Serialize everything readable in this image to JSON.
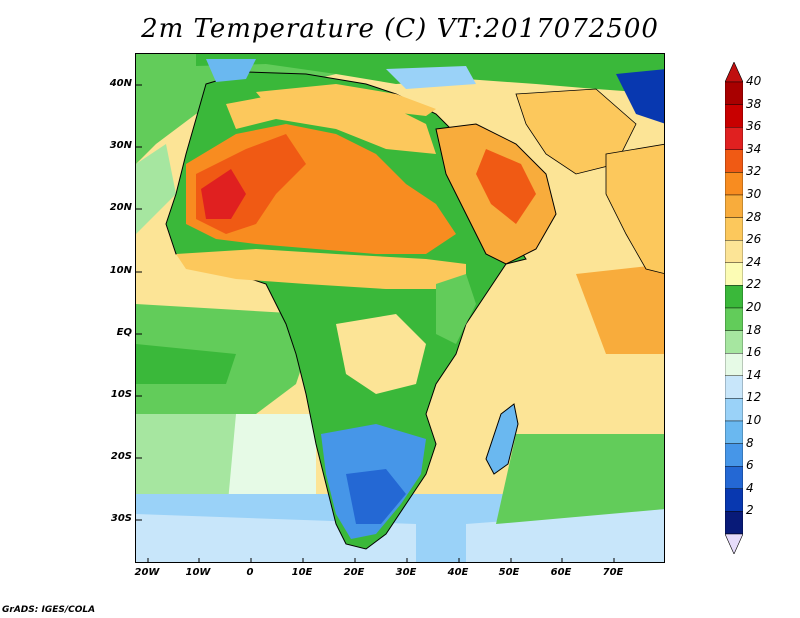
{
  "title": "2m Temperature (C) VT:2017072500",
  "credit": "GrADS: IGES/COLA",
  "lat_labels": [
    "40N",
    "30N",
    "20N",
    "10N",
    "EQ",
    "10S",
    "20S",
    "30S"
  ],
  "lon_labels": [
    "20W",
    "10W",
    "0",
    "10E",
    "20E",
    "30E",
    "40E",
    "50E",
    "60E",
    "70E"
  ],
  "colorbar": {
    "labels": [
      "40",
      "38",
      "36",
      "34",
      "32",
      "30",
      "28",
      "26",
      "24",
      "22",
      "20",
      "18",
      "16",
      "14",
      "12",
      "10",
      "8",
      "6",
      "4",
      "2"
    ],
    "colors": [
      "#a80000",
      "#c80000",
      "#e02020",
      "#f05a14",
      "#f88c20",
      "#f8ac3c",
      "#fcc85c",
      "#fce496",
      "#fcfcb4",
      "#3ab83a",
      "#62cc5a",
      "#a6e6a0",
      "#e6fae6",
      "#c8e6fa",
      "#9ad2f8",
      "#6ab8f0",
      "#4696e8",
      "#2468d4",
      "#0838b0",
      "#081a78"
    ],
    "top_arrow_color": "#c01010",
    "bottom_arrow_color": "#e6dcfa"
  },
  "map": {
    "lon_range": [
      -22,
      80
    ],
    "lat_range": [
      -37,
      45
    ],
    "ocean_color": "#fce496"
  }
}
